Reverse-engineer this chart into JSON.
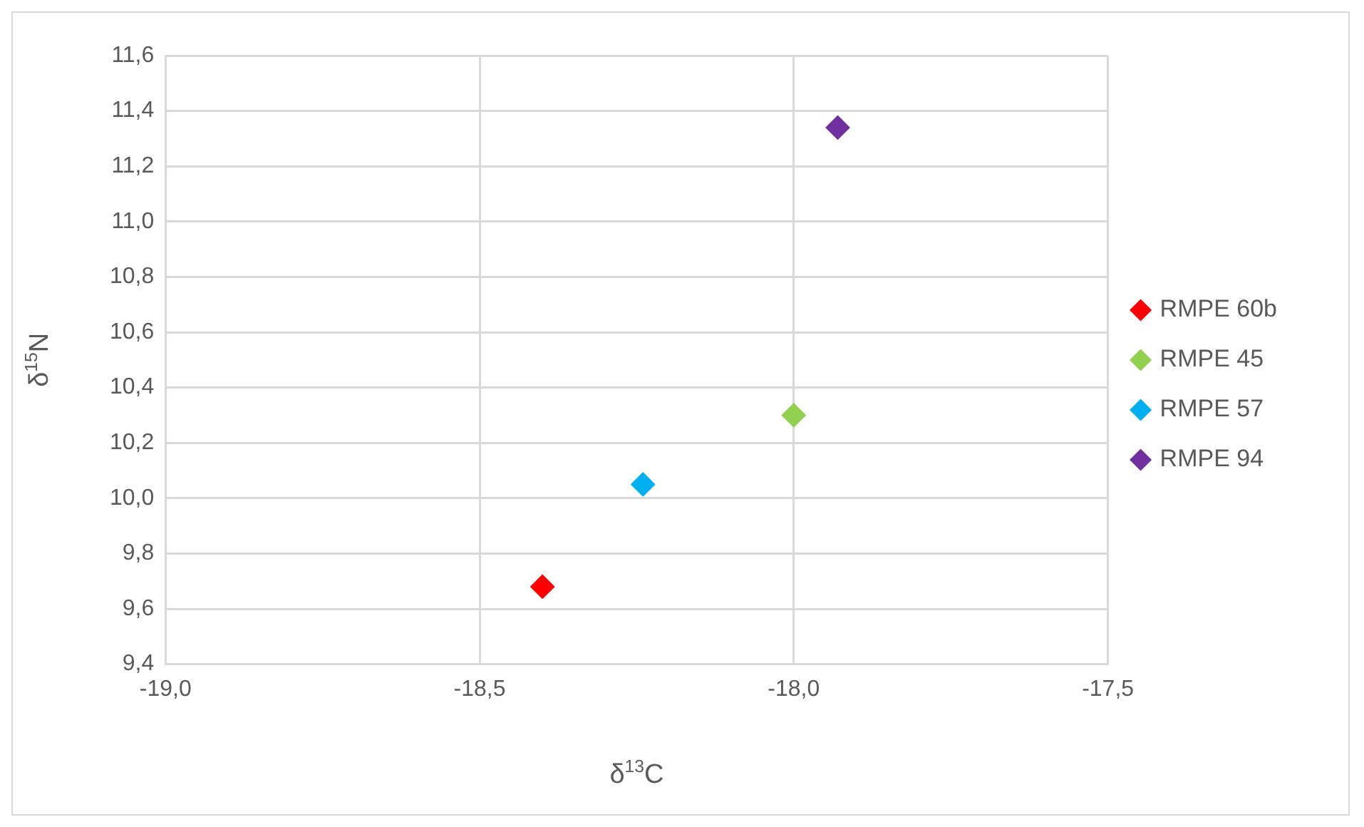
{
  "chart_data": {
    "type": "scatter",
    "xlabel": "δ$^{13}$C",
    "ylabel": "δ$^{15}$N",
    "series": [
      {
        "name": "RMPE 60b",
        "color": "#ff0000",
        "x": [
          -18.4
        ],
        "values": [
          9.68
        ]
      },
      {
        "name": "RMPE 45",
        "color": "#92d050",
        "x": [
          -18.0
        ],
        "values": [
          10.3
        ]
      },
      {
        "name": "RMPE 57",
        "color": "#00b0f0",
        "x": [
          -18.24
        ],
        "values": [
          10.05
        ]
      },
      {
        "name": "RMPE 94",
        "color": "#7030a0",
        "x": [
          -17.93
        ],
        "values": [
          11.34
        ]
      }
    ],
    "xlim": [
      -19,
      -17.5
    ],
    "xticks": [
      {
        "value": -19,
        "label": "-19,0"
      },
      {
        "value": -18.5,
        "label": "-18,5"
      },
      {
        "value": -18,
        "label": "-18,0"
      },
      {
        "value": -17.5,
        "label": "-17,5"
      }
    ],
    "ylim": [
      9.4,
      11.6
    ],
    "yticks": [
      {
        "value": 9.4,
        "label": "9,4"
      },
      {
        "value": 9.6,
        "label": "9,6"
      },
      {
        "value": 9.8,
        "label": "9,8"
      },
      {
        "value": 10.0,
        "label": "10,0"
      },
      {
        "value": 10.2,
        "label": "10,2"
      },
      {
        "value": 10.4,
        "label": "10,4"
      },
      {
        "value": 10.6,
        "label": "10,6"
      },
      {
        "value": 10.8,
        "label": "10,8"
      },
      {
        "value": 11.0,
        "label": "11,0"
      },
      {
        "value": 11.2,
        "label": "11,2"
      },
      {
        "value": 11.4,
        "label": "11,4"
      },
      {
        "value": 11.6,
        "label": "11,6"
      }
    ],
    "grid": true,
    "legend": "right",
    "marker": "diamond"
  }
}
